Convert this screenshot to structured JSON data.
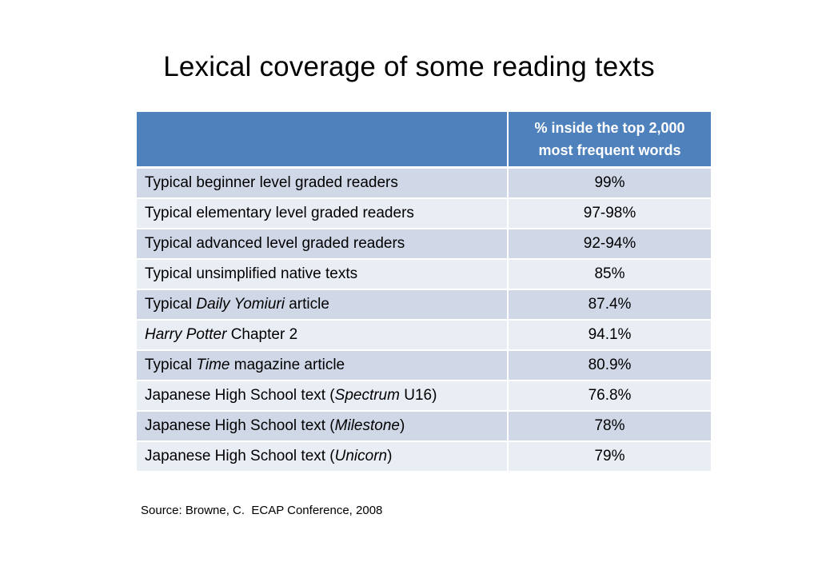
{
  "title": "Lexical coverage of some reading texts",
  "table": {
    "header": {
      "col1": "",
      "col2_line1": "% inside the top 2,000",
      "col2_line2": "most frequent words"
    },
    "rows": [
      {
        "pre": "Typical beginner level graded readers",
        "em": "",
        "post": "",
        "value": "99%"
      },
      {
        "pre": "Typical elementary level graded readers",
        "em": "",
        "post": "",
        "value": "97-98%"
      },
      {
        "pre": "Typical advanced level graded readers",
        "em": "",
        "post": "",
        "value": "92-94%"
      },
      {
        "pre": "Typical unsimplified native texts",
        "em": "",
        "post": "",
        "value": "85%"
      },
      {
        "pre": "Typical ",
        "em": "Daily Yomiuri",
        "post": " article",
        "value": "87.4%"
      },
      {
        "pre": "",
        "em": "Harry Potter",
        "post": " Chapter 2",
        "value": "94.1%"
      },
      {
        "pre": "Typical ",
        "em": "Time",
        "post": " magazine article",
        "value": "80.9%"
      },
      {
        "pre": "Japanese High School text (",
        "em": "Spectrum",
        "post": " U16)",
        "value": "76.8%"
      },
      {
        "pre": "Japanese High School text (",
        "em": "Milestone",
        "post": ")",
        "value": "78%"
      },
      {
        "pre": "Japanese High School text (",
        "em": "Unicorn",
        "post": ")",
        "value": "79%"
      }
    ]
  },
  "source": "Source: Browne, C.  ECAP Conference, 2008",
  "colors": {
    "header_bg": "#4f81bd",
    "row_odd_bg": "#d0d8e8",
    "row_even_bg": "#e9edf4"
  }
}
